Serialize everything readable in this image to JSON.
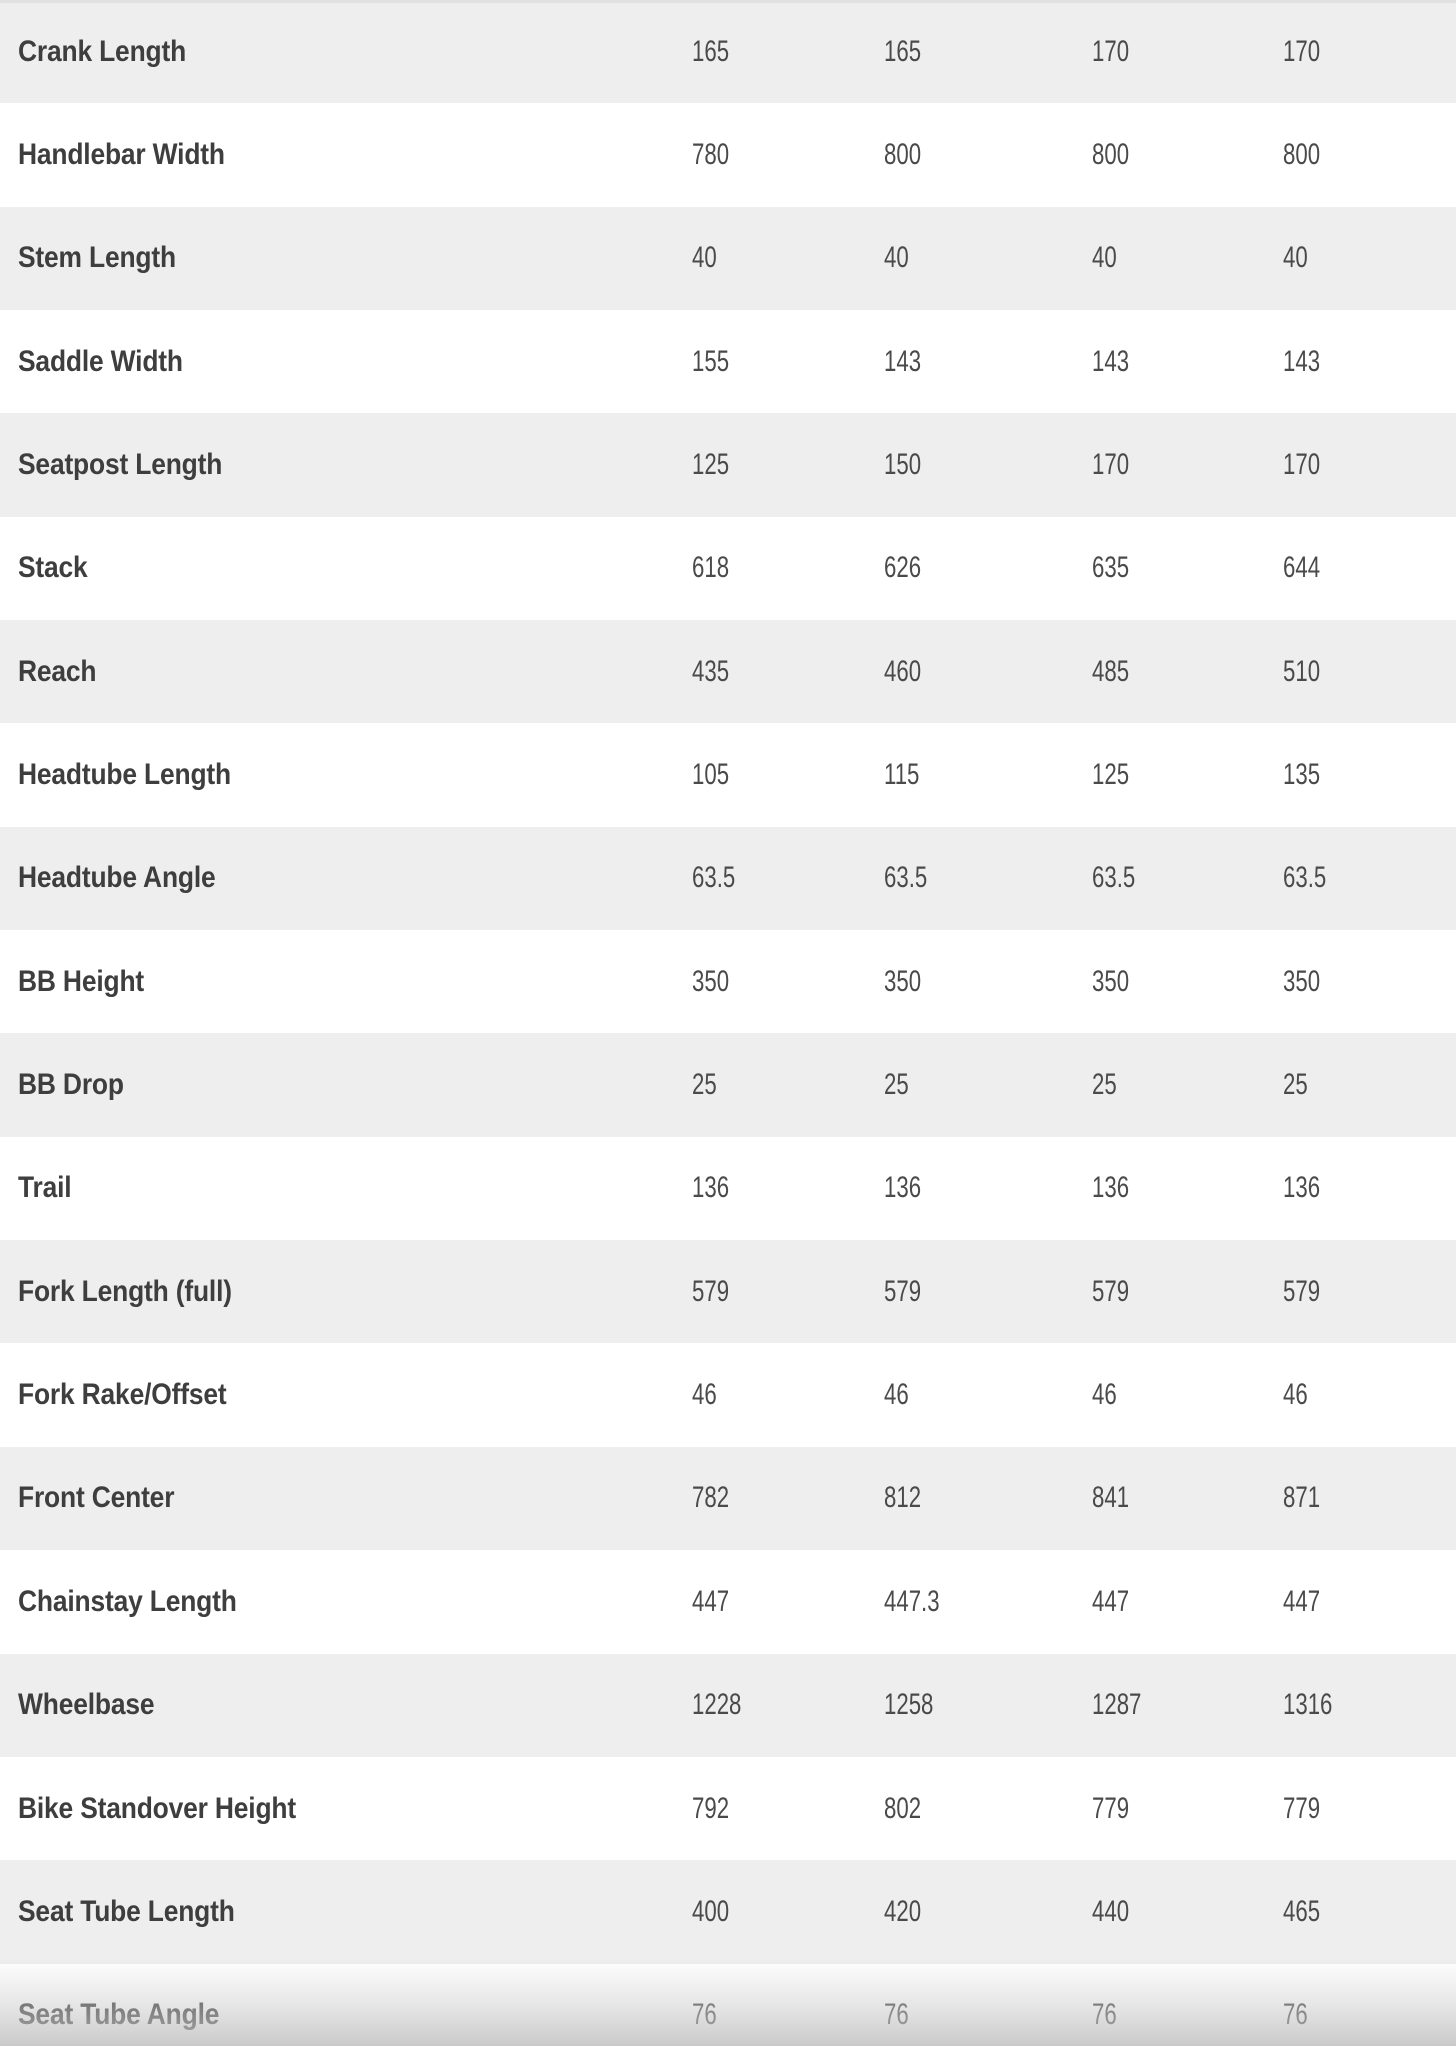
{
  "colors": {
    "row_background": "#ffffff",
    "row_alt_background": "#eeeeee",
    "label_text": "#3e3e3e",
    "value_text": "#4a4a4a",
    "top_strip": "#e1e1e1"
  },
  "table": {
    "rows": [
      {
        "label": "Crank Length",
        "values": [
          "165",
          "165",
          "170",
          "170"
        ]
      },
      {
        "label": "Handlebar Width",
        "values": [
          "780",
          "800",
          "800",
          "800"
        ]
      },
      {
        "label": "Stem Length",
        "values": [
          "40",
          "40",
          "40",
          "40"
        ]
      },
      {
        "label": "Saddle Width",
        "values": [
          "155",
          "143",
          "143",
          "143"
        ]
      },
      {
        "label": "Seatpost Length",
        "values": [
          "125",
          "150",
          "170",
          "170"
        ]
      },
      {
        "label": "Stack",
        "values": [
          "618",
          "626",
          "635",
          "644"
        ]
      },
      {
        "label": "Reach",
        "values": [
          "435",
          "460",
          "485",
          "510"
        ]
      },
      {
        "label": "Headtube Length",
        "values": [
          "105",
          "115",
          "125",
          "135"
        ]
      },
      {
        "label": "Headtube Angle",
        "values": [
          "63.5",
          "63.5",
          "63.5",
          "63.5"
        ]
      },
      {
        "label": "BB Height",
        "values": [
          "350",
          "350",
          "350",
          "350"
        ]
      },
      {
        "label": "BB Drop",
        "values": [
          "25",
          "25",
          "25",
          "25"
        ]
      },
      {
        "label": "Trail",
        "values": [
          "136",
          "136",
          "136",
          "136"
        ]
      },
      {
        "label": "Fork Length (full)",
        "values": [
          "579",
          "579",
          "579",
          "579"
        ]
      },
      {
        "label": "Fork Rake/Offset",
        "values": [
          "46",
          "46",
          "46",
          "46"
        ]
      },
      {
        "label": "Front Center",
        "values": [
          "782",
          "812",
          "841",
          "871"
        ]
      },
      {
        "label": "Chainstay Length",
        "values": [
          "447",
          "447.3",
          "447",
          "447"
        ]
      },
      {
        "label": "Wheelbase",
        "values": [
          "1228",
          "1258",
          "1287",
          "1316"
        ]
      },
      {
        "label": "Bike Standover Height",
        "values": [
          "792",
          "802",
          "779",
          "779"
        ]
      },
      {
        "label": "Seat Tube Length",
        "values": [
          "400",
          "420",
          "440",
          "465"
        ]
      },
      {
        "label": "Seat Tube Angle",
        "values": [
          "76",
          "76",
          "76",
          "76"
        ]
      }
    ]
  }
}
